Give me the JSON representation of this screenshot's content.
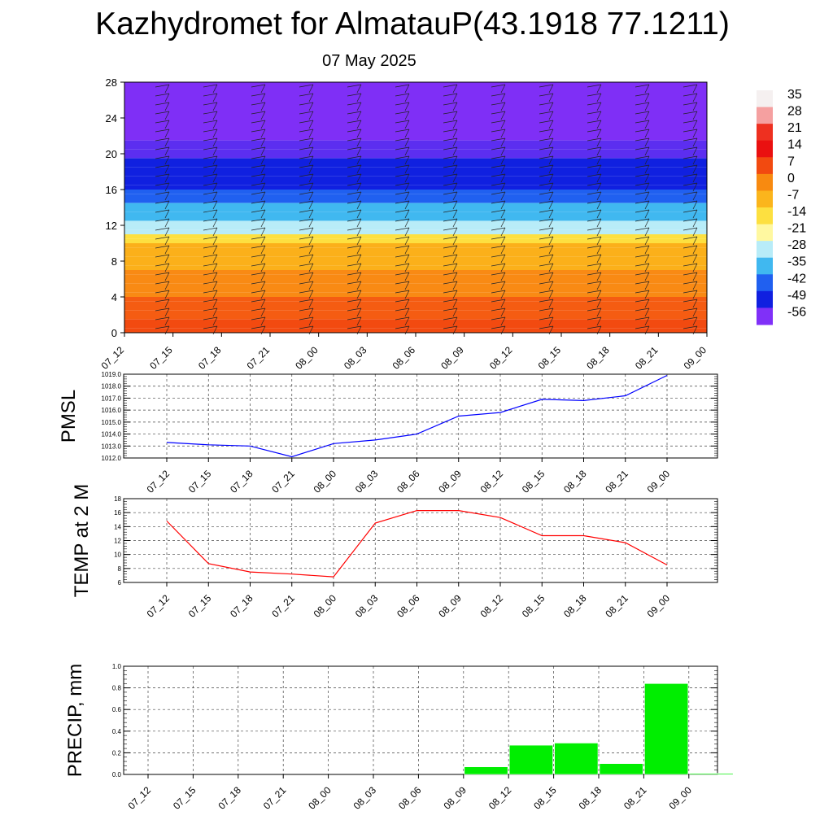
{
  "title": "Kazhydromet for AlmatauP(43.1918 77.1211)",
  "subtitle": "07 May 2025",
  "x_labels": [
    "07_12",
    "07_15",
    "07_18",
    "07_21",
    "08_00",
    "08_03",
    "08_06",
    "08_09",
    "08_12",
    "08_15",
    "08_18",
    "08_21",
    "09_00"
  ],
  "chart_data": [
    {
      "type": "heatmap",
      "y_ticks": [
        "0",
        "4",
        "8",
        "12",
        "16",
        "20",
        "24",
        "28"
      ],
      "ylim": [
        0,
        28
      ],
      "colorbar": {
        "labels": [
          "35",
          "28",
          "21",
          "14",
          "7",
          "0",
          "-7",
          "-14",
          "-21",
          "-28",
          "-35",
          "-42",
          "-49",
          "-56"
        ],
        "colors": [
          "#f5f0f0",
          "#f5a0a0",
          "#ee3020",
          "#ea1010",
          "#f24a10",
          "#f88a10",
          "#fbb51c",
          "#fde040",
          "#fff8a0",
          "#b8ecf8",
          "#40b8f0",
          "#2060f0",
          "#1020e0",
          "#8030f8"
        ]
      },
      "bands": [
        {
          "from": 0,
          "to": 1.5,
          "color": "#f24a10"
        },
        {
          "from": 1.5,
          "to": 4,
          "color": "#f55c12"
        },
        {
          "from": 4,
          "to": 7,
          "color": "#f98a14"
        },
        {
          "from": 7,
          "to": 10,
          "color": "#fbb01a"
        },
        {
          "from": 10,
          "to": 11,
          "color": "#fde040"
        },
        {
          "from": 11,
          "to": 12.5,
          "color": "#b8ecf8"
        },
        {
          "from": 12.5,
          "to": 14.5,
          "color": "#40b8f0"
        },
        {
          "from": 14.5,
          "to": 16,
          "color": "#2060f0"
        },
        {
          "from": 16,
          "to": 19.5,
          "color": "#1020e0"
        },
        {
          "from": 19.5,
          "to": 21.5,
          "color": "#5c2ef0"
        },
        {
          "from": 21.5,
          "to": 28,
          "color": "#7f2ff6"
        }
      ]
    },
    {
      "type": "line",
      "ylabel": "PMSL",
      "ylim": [
        1012.0,
        1019.0
      ],
      "y_ticks": [
        "1012.0",
        "1013.0",
        "1014.0",
        "1015.0",
        "1016.0",
        "1017.0",
        "1018.0",
        "1019.0"
      ],
      "color": "#0000ff",
      "values": [
        1013.3,
        1013.1,
        1013.0,
        1012.1,
        1013.2,
        1013.5,
        1014.0,
        1015.5,
        1015.8,
        1016.9,
        1016.8,
        1017.2,
        1018.9
      ]
    },
    {
      "type": "line",
      "ylabel": "TEMP at 2 M",
      "ylim": [
        6,
        18
      ],
      "y_ticks": [
        "6",
        "8",
        "10",
        "12",
        "14",
        "16",
        "18"
      ],
      "color": "#ff0000",
      "values": [
        14.8,
        8.7,
        7.5,
        7.2,
        6.8,
        14.5,
        16.3,
        16.3,
        15.3,
        12.7,
        12.7,
        11.7,
        8.5
      ]
    },
    {
      "type": "bar",
      "ylabel": "PRECIP, mm",
      "ylim": [
        0.0,
        1.0
      ],
      "y_ticks": [
        "0.0",
        "0.2",
        "0.4",
        "0.6",
        "0.8",
        "1.0"
      ],
      "color": "#00ee00",
      "values": [
        0,
        0,
        0,
        0,
        0,
        0,
        0,
        0.07,
        0.27,
        0.29,
        0.1,
        0.84,
        0.01
      ]
    }
  ]
}
